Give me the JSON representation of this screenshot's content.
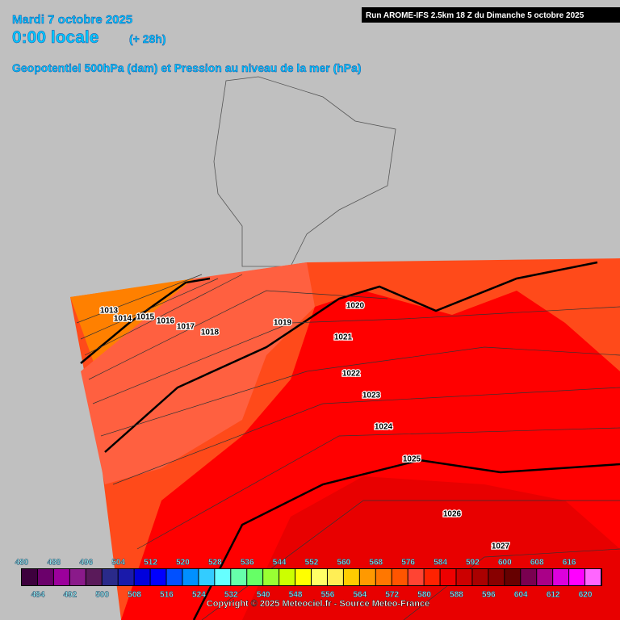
{
  "header": {
    "date": "Mardi 7 octobre 2025",
    "time": "0:00 locale",
    "lead": "(+ 28h)",
    "subtitle": "Geopotentiel 500hPa (dam) et Pression au niveau de la mer (hPa)",
    "run": "Run AROME-IFS 2.5km 18 Z du Dimanche 5 octobre 2025"
  },
  "isobar_labels": [
    "1013",
    "1014",
    "1015",
    "1016",
    "1017",
    "1018",
    "1019",
    "1020",
    "1021",
    "1022",
    "1023",
    "1024",
    "1025",
    "1026",
    "1027"
  ],
  "legend": {
    "values": [
      480,
      484,
      488,
      492,
      496,
      500,
      504,
      508,
      512,
      516,
      520,
      524,
      528,
      532,
      536,
      540,
      544,
      548,
      552,
      556,
      560,
      564,
      568,
      572,
      576,
      580,
      584,
      588,
      592,
      596,
      600,
      604,
      608,
      612,
      616,
      620
    ],
    "colors": [
      "#3d003d",
      "#6b006b",
      "#9c009c",
      "#8a1a8a",
      "#5a1a5a",
      "#2a2a8a",
      "#1a1aaa",
      "#0000dd",
      "#0000ff",
      "#0050ff",
      "#0090ff",
      "#33ccff",
      "#66ffff",
      "#66ffaa",
      "#66ff66",
      "#99ff33",
      "#ccff00",
      "#ffff00",
      "#ffff66",
      "#ffee55",
      "#ffcc00",
      "#ff9900",
      "#ff7700",
      "#ff5500",
      "#ff4433",
      "#ff2200",
      "#ee0000",
      "#cc0000",
      "#aa0000",
      "#880000",
      "#660000",
      "#7a0050",
      "#aa0088",
      "#dd00dd",
      "#ff00ff",
      "#ff66ff"
    ]
  },
  "copyright": "Copyright © 2025 Meteociel.fr - Source Meteo-France"
}
